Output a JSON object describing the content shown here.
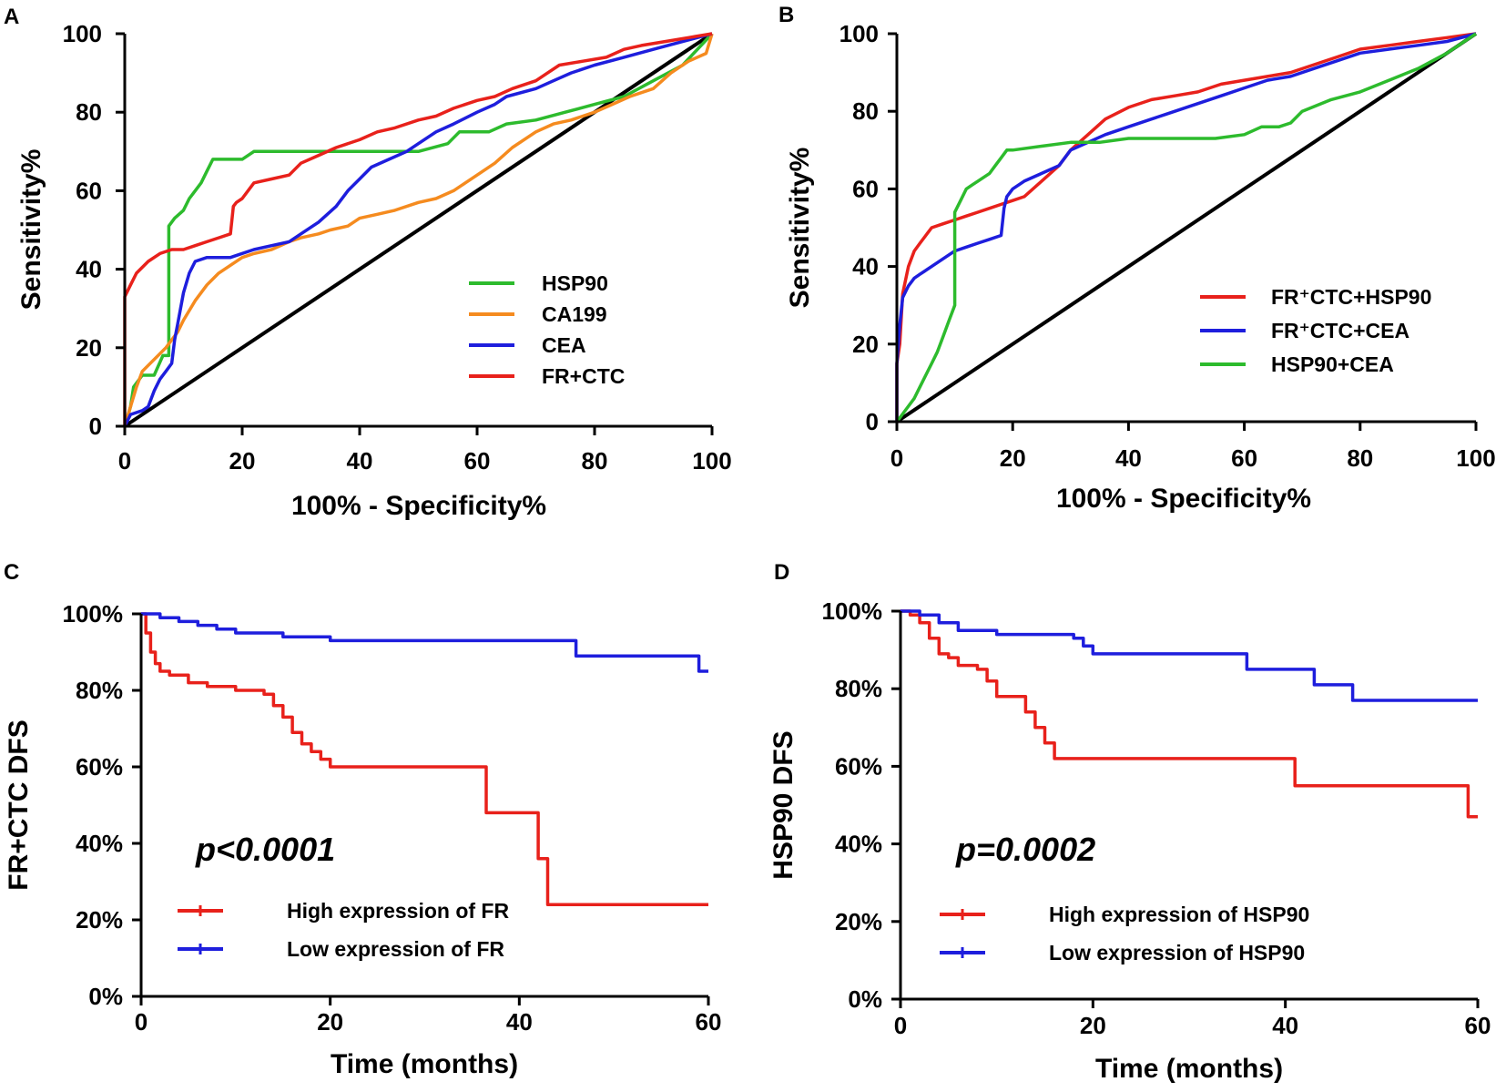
{
  "chart_data": [
    {
      "panel": "A",
      "type": "line",
      "xlabel": "100% - Specificity%",
      "ylabel": "Sensitivity%",
      "xlim": [
        0,
        100
      ],
      "ylim": [
        0,
        100
      ],
      "xticks": [
        "0",
        "20",
        "40",
        "60",
        "80",
        "100"
      ],
      "yticks": [
        "0",
        "20",
        "40",
        "60",
        "80",
        "100"
      ],
      "legend_position": "bottom-right",
      "reference_line": {
        "x": [
          0,
          100
        ],
        "y": [
          0,
          100
        ],
        "color": "#000000"
      },
      "series": [
        {
          "name": "HSP90",
          "color": "#2dbb2d",
          "x": [
            0,
            1,
            1.5,
            3,
            5,
            6.5,
            7.5,
            7.5,
            8.5,
            10,
            11,
            12,
            13,
            14,
            15,
            20,
            22,
            30,
            40,
            50,
            55,
            57,
            62,
            65,
            70,
            75,
            80,
            85,
            90,
            95,
            100
          ],
          "y": [
            0,
            5,
            10,
            13,
            13,
            18,
            18,
            51,
            53,
            55,
            58,
            60,
            62,
            65,
            68,
            68,
            70,
            70,
            70,
            70,
            72,
            75,
            75,
            77,
            78,
            80,
            82,
            84,
            88,
            92,
            100
          ]
        },
        {
          "name": "CA199",
          "color": "#f58b1f",
          "x": [
            0,
            1,
            2,
            3,
            5,
            7,
            9,
            10,
            12,
            14,
            16,
            18,
            20,
            22,
            25,
            28,
            30,
            33,
            35,
            38,
            40,
            43,
            46,
            50,
            53,
            56,
            58,
            60,
            63,
            66,
            70,
            73,
            76,
            80,
            83,
            86,
            90,
            93,
            96,
            99,
            100
          ],
          "y": [
            0,
            5,
            10,
            14,
            17,
            20,
            24,
            27,
            32,
            36,
            39,
            41,
            43,
            44,
            45,
            47,
            48,
            49,
            50,
            51,
            53,
            54,
            55,
            57,
            58,
            60,
            62,
            64,
            67,
            71,
            75,
            77,
            78,
            80,
            82,
            84,
            86,
            90,
            93,
            95,
            100
          ]
        },
        {
          "name": "CEA",
          "color": "#1e1edd",
          "x": [
            0,
            1,
            3,
            4,
            5,
            6,
            7,
            8,
            8.5,
            9,
            10,
            11,
            12,
            14,
            16,
            18,
            22,
            25,
            28,
            30,
            33,
            36,
            38,
            40,
            42,
            45,
            48,
            50,
            53,
            56,
            60,
            63,
            65,
            70,
            73,
            76,
            80,
            85,
            90,
            95,
            100
          ],
          "y": [
            0,
            3,
            4,
            5,
            9,
            12,
            14,
            16,
            22,
            26,
            34,
            39,
            42,
            43,
            43,
            43,
            45,
            46,
            47,
            49,
            52,
            56,
            60,
            63,
            66,
            68,
            70,
            72,
            75,
            77,
            80,
            82,
            84,
            86,
            88,
            90,
            92,
            94,
            96,
            98,
            100
          ]
        },
        {
          "name": "FR+CTC",
          "color": "#e8211b",
          "x": [
            0,
            0,
            1,
            2,
            4,
            6,
            8,
            10,
            12,
            14,
            16,
            18,
            18.5,
            19,
            20,
            22,
            25,
            28,
            30,
            33,
            36,
            40,
            43,
            46,
            50,
            53,
            56,
            60,
            63,
            66,
            70,
            72,
            74,
            78,
            82,
            85,
            88,
            92,
            96,
            100
          ],
          "y": [
            0,
            33,
            36,
            39,
            42,
            44,
            45,
            45,
            46,
            47,
            48,
            49,
            56,
            57,
            58,
            62,
            63,
            64,
            67,
            69,
            71,
            73,
            75,
            76,
            78,
            79,
            81,
            83,
            84,
            86,
            88,
            90,
            92,
            93,
            94,
            96,
            97,
            98,
            99,
            100
          ]
        }
      ]
    },
    {
      "panel": "B",
      "type": "line",
      "xlabel": "100% - Specificity%",
      "ylabel": "Sensitivity%",
      "xlim": [
        0,
        100
      ],
      "ylim": [
        0,
        100
      ],
      "xticks": [
        "0",
        "20",
        "40",
        "60",
        "80",
        "100"
      ],
      "yticks": [
        "0",
        "20",
        "40",
        "60",
        "80",
        "100"
      ],
      "legend_position": "bottom-right",
      "reference_line": {
        "x": [
          0,
          100
        ],
        "y": [
          0,
          100
        ],
        "color": "#000000"
      },
      "series": [
        {
          "name": "FR⁺CTC+HSP90",
          "color": "#e8211b",
          "x": [
            0,
            0,
            0.5,
            1,
            2,
            3,
            4,
            5,
            6,
            8,
            10,
            12,
            14,
            16,
            18,
            20,
            22,
            25,
            28,
            30,
            33,
            36,
            40,
            44,
            48,
            52,
            56,
            60,
            64,
            68,
            72,
            76,
            80,
            85,
            90,
            95,
            100
          ],
          "y": [
            0,
            15,
            20,
            33,
            40,
            44,
            46,
            48,
            50,
            51,
            52,
            53,
            54,
            55,
            56,
            57,
            58,
            62,
            66,
            70,
            74,
            78,
            81,
            83,
            84,
            85,
            87,
            88,
            89,
            90,
            92,
            94,
            96,
            97,
            98,
            99,
            100
          ]
        },
        {
          "name": "FR⁺CTC+CEA",
          "color": "#1e1edd",
          "x": [
            0,
            0,
            0.5,
            1,
            2,
            3,
            4,
            6,
            8,
            10,
            12,
            14,
            16,
            18,
            18.5,
            19,
            20,
            22,
            25,
            28,
            30,
            33,
            36,
            40,
            44,
            48,
            52,
            56,
            60,
            64,
            68,
            72,
            76,
            80,
            85,
            90,
            95,
            100
          ],
          "y": [
            0,
            15,
            25,
            32,
            35,
            37,
            38,
            40,
            42,
            44,
            45,
            46,
            47,
            48,
            55,
            58,
            60,
            62,
            64,
            66,
            70,
            72,
            74,
            76,
            78,
            80,
            82,
            84,
            86,
            88,
            89,
            91,
            93,
            95,
            96,
            97,
            98,
            100
          ]
        },
        {
          "name": "HSP90+CEA",
          "color": "#2dbb2d",
          "x": [
            0,
            1,
            2,
            3,
            4,
            5,
            6,
            7,
            8,
            9,
            10,
            10,
            11,
            12,
            13,
            14,
            16,
            17,
            18,
            19,
            20,
            25,
            30,
            35,
            40,
            45,
            50,
            55,
            60,
            63,
            66,
            68,
            70,
            75,
            80,
            85,
            90,
            95,
            100
          ],
          "y": [
            0,
            2,
            4,
            6,
            9,
            12,
            15,
            18,
            22,
            26,
            30,
            54,
            57,
            60,
            61,
            62,
            64,
            66,
            68,
            70,
            70,
            71,
            72,
            72,
            73,
            73,
            73,
            73,
            74,
            76,
            76,
            77,
            80,
            83,
            85,
            88,
            91,
            95,
            100
          ]
        }
      ]
    },
    {
      "panel": "C",
      "type": "line",
      "subtype": "kaplan-meier",
      "xlabel": "Time (months)",
      "ylabel": "FR+CTC DFS",
      "xlim": [
        0,
        60
      ],
      "ylim": [
        0,
        100
      ],
      "xticks": [
        "0",
        "20",
        "40",
        "60"
      ],
      "yticks": [
        "0%",
        "20%",
        "40%",
        "60%",
        "80%",
        "100%"
      ],
      "annotation": "p<0.0001",
      "legend_position": "bottom-left",
      "series": [
        {
          "name": "High expression of FR",
          "color": "#e8211b",
          "x": [
            0,
            0.5,
            1,
            1.5,
            2,
            3,
            5,
            7,
            10,
            13,
            14,
            15,
            16,
            17,
            18,
            19,
            20,
            25,
            30,
            34,
            36,
            36.5,
            39,
            41,
            42,
            43,
            45,
            60
          ],
          "y": [
            100,
            95,
            90,
            87,
            85,
            84,
            82,
            81,
            80,
            79,
            76,
            73,
            69,
            66,
            64,
            62,
            60,
            60,
            60,
            60,
            60,
            48,
            48,
            48,
            36,
            24,
            24,
            24
          ]
        },
        {
          "name": "Low expression of FR",
          "color": "#1e1edd",
          "x": [
            0,
            2,
            4,
            6,
            8,
            10,
            12,
            15,
            18,
            20,
            25,
            30,
            35,
            40,
            45,
            46,
            50,
            55,
            59,
            60
          ],
          "y": [
            100,
            99,
            98,
            97,
            96,
            95,
            95,
            94,
            94,
            93,
            93,
            93,
            93,
            93,
            93,
            89,
            89,
            89,
            85,
            85
          ]
        }
      ]
    },
    {
      "panel": "D",
      "type": "line",
      "subtype": "kaplan-meier",
      "xlabel": "Time (months)",
      "ylabel": "HSP90 DFS",
      "xlim": [
        0,
        60
      ],
      "ylim": [
        0,
        100
      ],
      "xticks": [
        "0",
        "20",
        "40",
        "60"
      ],
      "yticks": [
        "0%",
        "20%",
        "40%",
        "60%",
        "80%",
        "100%"
      ],
      "annotation": "p=0.0002",
      "legend_position": "bottom-left",
      "series": [
        {
          "name": "High expression of HSP90",
          "color": "#e8211b",
          "x": [
            0,
            1,
            2,
            3,
            4,
            5,
            6,
            8,
            9,
            10,
            12,
            13,
            14,
            15,
            16,
            20,
            25,
            30,
            35,
            40,
            41,
            45,
            50,
            55,
            58,
            59,
            60
          ],
          "y": [
            100,
            99,
            97,
            93,
            89,
            88,
            86,
            85,
            82,
            78,
            78,
            74,
            70,
            66,
            62,
            62,
            62,
            62,
            62,
            62,
            55,
            55,
            55,
            55,
            55,
            47,
            47
          ]
        },
        {
          "name": "Low expression of HSP90",
          "color": "#1e1edd",
          "x": [
            0,
            2,
            4,
            6,
            10,
            15,
            18,
            19,
            20,
            25,
            30,
            35,
            36,
            37,
            40,
            42,
            43,
            46,
            47,
            50,
            55,
            60
          ],
          "y": [
            100,
            99,
            97,
            95,
            94,
            94,
            93,
            91,
            89,
            89,
            89,
            89,
            85,
            85,
            85,
            85,
            81,
            81,
            77,
            77,
            77,
            77
          ]
        }
      ]
    }
  ],
  "panels": [
    {
      "letter": "A"
    },
    {
      "letter": "B"
    },
    {
      "letter": "C"
    },
    {
      "letter": "D"
    }
  ]
}
